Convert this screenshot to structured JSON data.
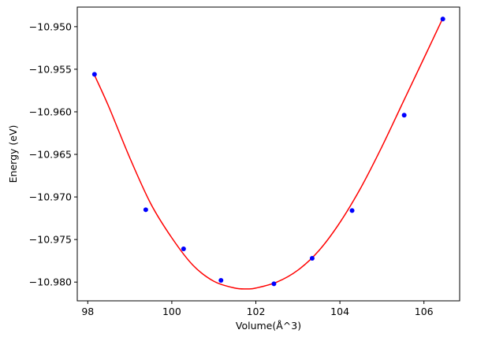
{
  "chart_data": {
    "type": "scatter",
    "title": "",
    "xlabel": "Volume(Å^3)",
    "ylabel": "Energy (eV)",
    "xlim": [
      97.75,
      106.85
    ],
    "ylim": [
      -10.9822,
      -10.9477
    ],
    "x_ticks": [
      98,
      100,
      102,
      104,
      106
    ],
    "x_tick_labels": [
      "98",
      "100",
      "102",
      "104",
      "106"
    ],
    "y_ticks": [
      -10.98,
      -10.975,
      -10.97,
      -10.965,
      -10.96,
      -10.955,
      -10.95
    ],
    "y_tick_labels": [
      "−10.980",
      "−10.975",
      "−10.970",
      "−10.965",
      "−10.960",
      "−10.955",
      "−10.950"
    ],
    "grid": false,
    "series": [
      {
        "kind": "scatter",
        "color": "#0000ff",
        "x": [
          98.16,
          99.38,
          100.28,
          101.17,
          102.43,
          103.34,
          104.29,
          105.53,
          106.45
        ],
        "y": [
          -10.9556,
          -10.9715,
          -10.9761,
          -10.9798,
          -10.9802,
          -10.9772,
          -10.9716,
          -10.9604,
          -10.9491
        ]
      },
      {
        "kind": "line",
        "color": "#ff0000",
        "x": [
          98.16,
          98.5,
          99.0,
          99.5,
          100.0,
          100.5,
          101.0,
          101.5,
          101.8,
          102.0,
          102.5,
          103.0,
          103.5,
          104.0,
          104.5,
          105.0,
          105.5,
          106.0,
          106.45
        ],
        "y": [
          -10.9557,
          -10.9594,
          -10.9654,
          -10.9708,
          -10.9748,
          -10.978,
          -10.9799,
          -10.9807,
          -10.9808,
          -10.9807,
          -10.98,
          -10.9786,
          -10.9763,
          -10.973,
          -10.9689,
          -10.9641,
          -10.9589,
          -10.9537,
          -10.949
        ]
      }
    ]
  }
}
